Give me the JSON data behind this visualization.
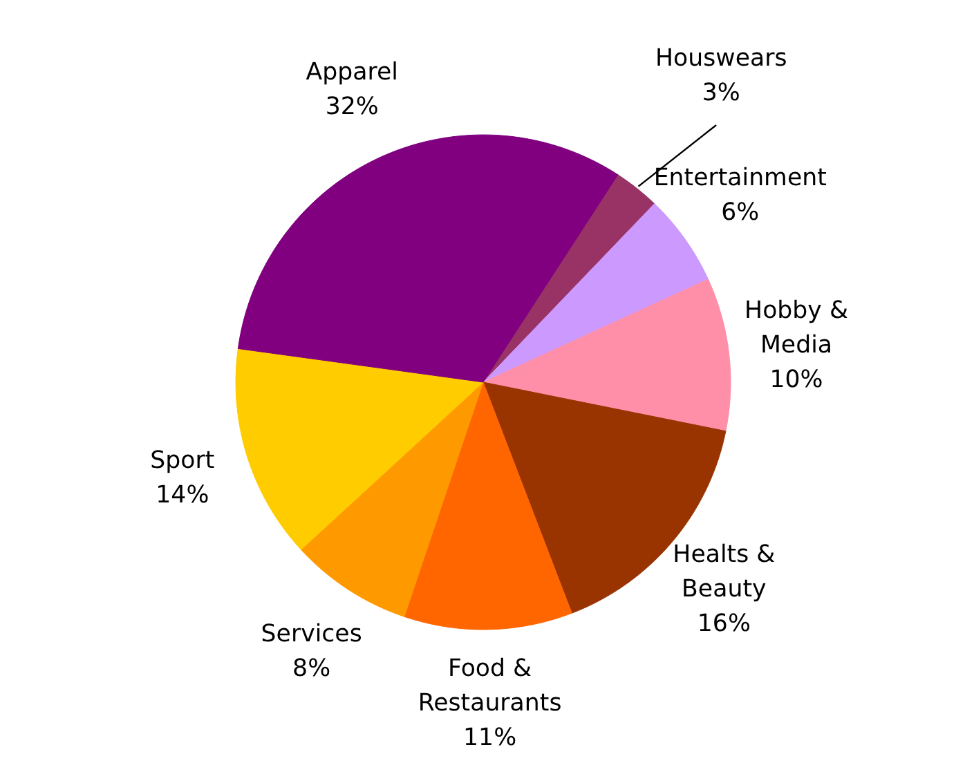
{
  "chart_data": {
    "type": "pie",
    "categories": [
      "Houswears",
      "Entertainment",
      "Hobby & Media",
      "Healts & Beauty",
      "Food & Restaurants",
      "Services",
      "Sport",
      "Apparel"
    ],
    "values": [
      3,
      6,
      10,
      16,
      11,
      8,
      14,
      32
    ],
    "value_labels": [
      "3%",
      "6%",
      "10%",
      "16%",
      "11%",
      "8%",
      "14%",
      "32%"
    ],
    "colors": [
      "#993366",
      "#cc99ff",
      "#ff8fa8",
      "#993300",
      "#ff6600",
      "#ff9900",
      "#ffcc00",
      "#800080"
    ]
  }
}
